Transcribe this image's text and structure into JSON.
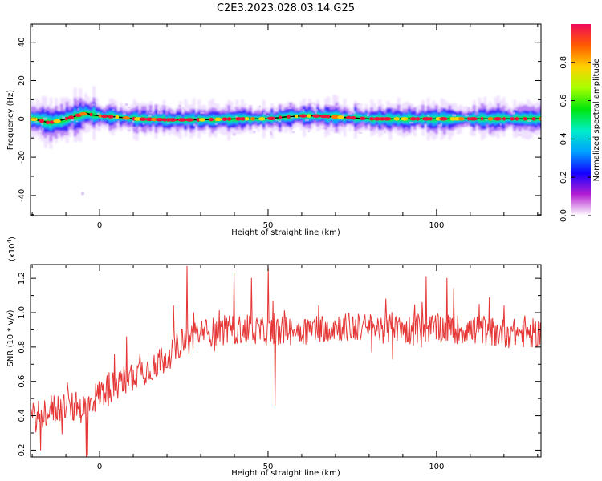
{
  "title": "C2E3.2023.028.03.14.G25",
  "colorbar": {
    "label": "Normalized spectral amplitude",
    "ticks": [
      "0.0",
      "0.2",
      "0.4",
      "0.6",
      "0.8"
    ],
    "tick_values": [
      0.0,
      0.2,
      0.4,
      0.6,
      0.8
    ],
    "colors": [
      "#ffffff",
      "#b41ed2",
      "#1400ff",
      "#00a0ff",
      "#00eec8",
      "#00e60a",
      "#a8ff00",
      "#ffd000",
      "#ff5a00",
      "#f00a5a"
    ]
  },
  "chart_data": [
    {
      "type": "heatmap",
      "xlabel": "Height of straight line (km)",
      "ylabel": "Frequency (Hz)",
      "xlim": [
        -20.5,
        131
      ],
      "ylim": [
        -50.5,
        49.5
      ],
      "xticks": [
        0,
        50,
        100
      ],
      "xticklabels": [
        "0",
        "50",
        "100"
      ],
      "yticks": [
        40,
        20,
        0,
        -20,
        -40
      ],
      "yticklabels": [
        "40",
        "20",
        "0",
        "-20",
        "-40"
      ],
      "ridge_frequency_hz": [
        [
          -20,
          0
        ],
        [
          -15,
          -2
        ],
        [
          -12,
          -1
        ],
        [
          -8,
          1
        ],
        [
          -6,
          2
        ],
        [
          -4,
          3
        ],
        [
          -2,
          2
        ],
        [
          0,
          1.5
        ],
        [
          5,
          1
        ],
        [
          10,
          0
        ],
        [
          20,
          -0.5
        ],
        [
          30,
          -0.5
        ],
        [
          40,
          0
        ],
        [
          50,
          0
        ],
        [
          55,
          1
        ],
        [
          60,
          1.5
        ],
        [
          65,
          1.5
        ],
        [
          70,
          1
        ],
        [
          75,
          0.5
        ],
        [
          80,
          0
        ],
        [
          100,
          0
        ],
        [
          120,
          0
        ],
        [
          131,
          0
        ]
      ],
      "outlier_point": {
        "x": -5,
        "y": -39
      }
    },
    {
      "type": "line",
      "xlabel": "Height of straight line (km)",
      "ylabel": "SNR (10 * v/v)",
      "scale_label": "(x10",
      "scale_exponent": "4",
      "scale_suffix": ")",
      "xlim": [
        -20.5,
        131
      ],
      "ylim": [
        0.16,
        1.28
      ],
      "xticks": [
        0,
        50,
        100
      ],
      "xticklabels": [
        "0",
        "50",
        "100"
      ],
      "yticks": [
        0.2,
        0.4,
        0.6,
        0.8,
        1.0,
        1.2
      ],
      "yticklabels": [
        "0.2",
        "0.4",
        "0.6",
        "0.8",
        "1.0",
        "1.2"
      ],
      "series": [
        {
          "color": "#e53535",
          "trend": [
            [
              -20.5,
              0.38
            ],
            [
              -15,
              0.43
            ],
            [
              -10,
              0.46
            ],
            [
              -5,
              0.44
            ],
            [
              0,
              0.53
            ],
            [
              5,
              0.58
            ],
            [
              10,
              0.64
            ],
            [
              15,
              0.68
            ],
            [
              20,
              0.74
            ],
            [
              25,
              0.84
            ],
            [
              30,
              0.88
            ],
            [
              40,
              0.9
            ],
            [
              50,
              0.89
            ],
            [
              60,
              0.9
            ],
            [
              70,
              0.92
            ],
            [
              80,
              0.91
            ],
            [
              90,
              0.9
            ],
            [
              100,
              0.91
            ],
            [
              110,
              0.9
            ],
            [
              120,
              0.88
            ],
            [
              131,
              0.88
            ]
          ],
          "peaks": [
            [
              -17.5,
              0.2
            ],
            [
              -4,
              0.16
            ],
            [
              -3.5,
              0.17
            ],
            [
              8,
              0.86
            ],
            [
              22,
              1.04
            ],
            [
              26,
              1.27
            ],
            [
              28,
              1.0
            ],
            [
              40,
              1.23
            ],
            [
              45,
              1.2
            ],
            [
              50,
              1.26
            ],
            [
              52,
              0.46
            ],
            [
              65,
              1.04
            ],
            [
              85,
              1.08
            ],
            [
              87,
              0.73
            ],
            [
              97,
              1.21
            ],
            [
              99,
              0.94
            ],
            [
              103,
              1.2
            ],
            [
              105,
              1.14
            ],
            [
              111,
              0.96
            ],
            [
              114,
              0.98
            ],
            [
              120,
              1.04
            ]
          ]
        }
      ]
    }
  ]
}
